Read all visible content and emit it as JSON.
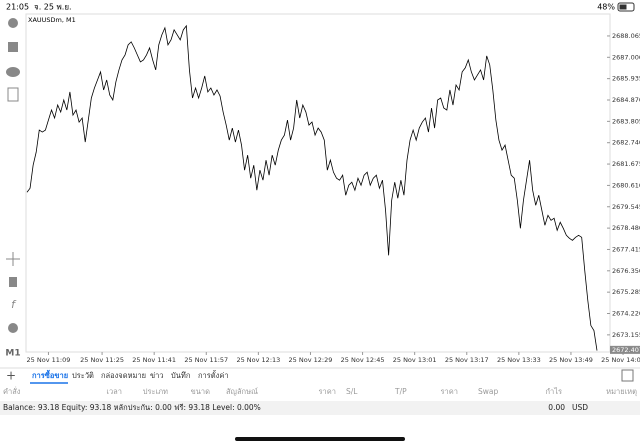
{
  "status_bar": {
    "time": "21:05",
    "date": "จ. 25 พ.ย.",
    "battery": "48%"
  },
  "chart_data": {
    "type": "line",
    "title": "XAUUSDm, M1",
    "color": "#000000",
    "values": [
      2680.27,
      2680.47,
      2681.62,
      2682.27,
      2683.37,
      2683.27,
      2683.37,
      2683.87,
      2684.37,
      2683.97,
      2684.62,
      2684.27,
      2684.87,
      2684.37,
      2685.27,
      2684.12,
      2684.37,
      2683.77,
      2683.97,
      2682.77,
      2683.87,
      2684.97,
      2685.47,
      2685.87,
      2686.27,
      2685.37,
      2685.87,
      2685.12,
      2684.87,
      2685.77,
      2686.37,
      2686.87,
      2687.12,
      2687.62,
      2687.77,
      2687.47,
      2687.12,
      2686.77,
      2686.87,
      2687.12,
      2687.47,
      2686.87,
      2686.37,
      2687.62,
      2688.12,
      2688.47,
      2687.62,
      2687.87,
      2688.37,
      2688.12,
      2687.87,
      2688.37,
      2688.57,
      2686.37,
      2684.97,
      2685.47,
      2684.97,
      2685.47,
      2686.07,
      2685.27,
      2685.47,
      2685.12,
      2685.37,
      2685.07,
      2684.27,
      2683.62,
      2682.87,
      2683.47,
      2682.77,
      2683.37,
      2682.62,
      2681.37,
      2682.12,
      2680.97,
      2681.62,
      2680.37,
      2681.37,
      2680.87,
      2681.87,
      2681.12,
      2682.12,
      2681.62,
      2682.37,
      2682.87,
      2683.12,
      2683.87,
      2682.87,
      2683.47,
      2684.87,
      2683.97,
      2684.62,
      2684.27,
      2683.62,
      2683.77,
      2683.12,
      2683.47,
      2683.27,
      2682.87,
      2681.37,
      2681.87,
      2681.27,
      2680.97,
      2680.87,
      2681.12,
      2680.12,
      2680.62,
      2680.77,
      2680.37,
      2680.97,
      2680.62,
      2681.12,
      2681.27,
      2680.62,
      2680.97,
      2681.12,
      2680.47,
      2680.87,
      2679.37,
      2677.12,
      2679.87,
      2680.77,
      2679.97,
      2680.87,
      2680.12,
      2681.87,
      2682.87,
      2683.37,
      2682.87,
      2683.47,
      2683.77,
      2683.97,
      2683.27,
      2684.47,
      2683.47,
      2684.87,
      2684.97,
      2684.47,
      2684.37,
      2685.37,
      2684.62,
      2685.62,
      2685.37,
      2686.27,
      2686.47,
      2686.87,
      2686.27,
      2685.87,
      2686.12,
      2686.37,
      2685.87,
      2687.07,
      2686.62,
      2685.37,
      2683.87,
      2682.87,
      2682.37,
      2682.62,
      2681.87,
      2681.12,
      2680.97,
      2679.87,
      2678.47,
      2679.87,
      2680.87,
      2681.87,
      2680.37,
      2679.62,
      2680.12,
      2679.37,
      2678.62,
      2679.12,
      2678.87,
      2678.97,
      2678.37,
      2678.77,
      2678.47,
      2678.12,
      2677.97,
      2677.87,
      2678.02,
      2678.12,
      2678.02,
      2676.37,
      2674.87,
      2673.62,
      2673.37,
      2672.37
    ],
    "xlim": [
      0,
      186
    ],
    "xticks": [
      {
        "value": 7,
        "label": "25 Nov 11:09"
      },
      {
        "value": 24.5,
        "label": "25 Nov 11:25"
      },
      {
        "value": 41.5,
        "label": "25 Nov 11:41"
      },
      {
        "value": 58.5,
        "label": "25 Nov 11:57"
      },
      {
        "value": 75.5,
        "label": "25 Nov 12:13"
      },
      {
        "value": 92.5,
        "label": "25 Nov 12:29"
      },
      {
        "value": 109.5,
        "label": "25 Nov 12:45"
      },
      {
        "value": 126.5,
        "label": "25 Nov 13:01"
      },
      {
        "value": 143.5,
        "label": "25 Nov 13:17"
      },
      {
        "value": 160.5,
        "label": "25 Nov 13:33"
      },
      {
        "value": 177.5,
        "label": "25 Nov 13:49"
      },
      {
        "value": 194.5,
        "label": "25 Nov 14:05"
      }
    ],
    "ylim": [
      2672.3,
      2689.16
    ],
    "yticks": [
      2688.065,
      {
        "value": 2687,
        "label": "2687.000"
      },
      2685.935,
      {
        "value": 2684.87,
        "label": "2684.870"
      },
      2683.805,
      {
        "value": 2682.74,
        "label": "2682.740"
      },
      2681.675,
      {
        "value": 2680.61,
        "label": "2680.610"
      },
      2679.545,
      {
        "value": 2678.48,
        "label": "2678.480"
      },
      2677.415,
      {
        "value": 2676.35,
        "label": "2676.350"
      },
      2675.285,
      {
        "value": 2674.22,
        "label": "2674.220"
      },
      2673.155
    ],
    "current_price": {
      "value": 2672.407,
      "label": "2672.407"
    }
  },
  "timeframe": "M1",
  "tabs": [
    "การซื้อขาย",
    "ประวัติ",
    "กล่องจดหมาย",
    "ข่าว",
    "บันทึก",
    "การตั้งค่า"
  ],
  "columns": [
    "คำสั่ง",
    "เวลา",
    "ประเภท",
    "ขนาด",
    "สัญลักษณ์",
    "ราคา",
    "S/L",
    "T/P",
    "ราคา",
    "Swap",
    "กำไร",
    "หมายเหตุ"
  ],
  "balance": {
    "summary": "Balance: 93.18 Equity: 93.18 หลักประกัน: 0.00 ฟรี: 93.18 Level: 0.00%",
    "amount": "0.00",
    "currency": "USD"
  }
}
